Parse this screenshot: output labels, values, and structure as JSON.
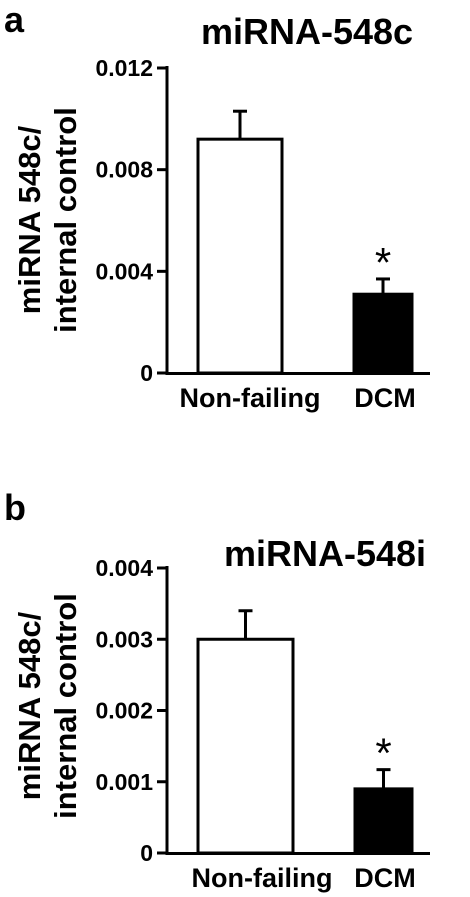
{
  "chart_data": [
    {
      "type": "bar",
      "panel": "a",
      "title": "miRNA-548c",
      "ylabel_lines": [
        "miRNA 548c/",
        "internal control"
      ],
      "categories": [
        "Non-failing",
        "DCM"
      ],
      "values": [
        0.0092,
        0.0031
      ],
      "errors": [
        0.0011,
        0.0006
      ],
      "bar_colors": [
        "#ffffff",
        "#000000"
      ],
      "significance": [
        "",
        "*"
      ],
      "ylim": [
        0,
        0.012
      ],
      "yticks": [
        "0",
        "0.004",
        "0.008",
        "0.012"
      ],
      "grid": false,
      "legend": "none"
    },
    {
      "type": "bar",
      "panel": "b",
      "title": "miRNA-548i",
      "ylabel_lines": [
        "miRNA 548c/",
        "internal control"
      ],
      "categories": [
        "Non-failing",
        "DCM"
      ],
      "values": [
        0.003,
        0.0009
      ],
      "errors": [
        0.0004,
        0.00027
      ],
      "bar_colors": [
        "#ffffff",
        "#000000"
      ],
      "significance": [
        "",
        "*"
      ],
      "ylim": [
        0,
        0.004
      ],
      "yticks": [
        "0",
        "0.001",
        "0.002",
        "0.003",
        "0.004"
      ],
      "grid": false,
      "legend": "none"
    }
  ]
}
